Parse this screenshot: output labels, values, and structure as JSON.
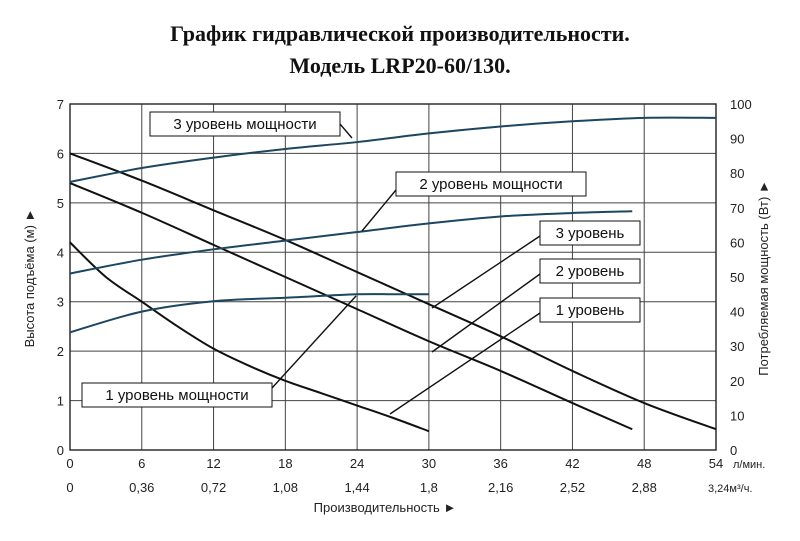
{
  "title_line1": "График гидравлической производительности.",
  "title_line2": "Модель LRP20-60/130.",
  "chart_data": {
    "type": "line",
    "title": "График гидравлической производительности. Модель LRP20-60/130.",
    "xlabel": "Производительность ►",
    "ylabel_left": "Высота подъёма (м) ►",
    "ylabel_right": "Потребляемая мощность (Вт) ►",
    "x_unit_top": "л/мин.",
    "x_unit_bottom": "3,24м³/ч.",
    "xlim": [
      0,
      54
    ],
    "ylim_left": [
      0,
      7
    ],
    "ylim_right": [
      0,
      100
    ],
    "x_ticks_top": [
      "0",
      "6",
      "12",
      "18",
      "24",
      "30",
      "36",
      "42",
      "48",
      "54"
    ],
    "x_ticks_bottom": [
      "0",
      "0,36",
      "0,72",
      "1,08",
      "1,44",
      "1,8",
      "2,16",
      "2,52",
      "2,88",
      "3,24м³/ч."
    ],
    "y_ticks_left": [
      "0",
      "1",
      "2",
      "3",
      "4",
      "5",
      "6",
      "7"
    ],
    "y_ticks_right": [
      "0",
      "10",
      "20",
      "30",
      "40",
      "50",
      "60",
      "70",
      "80",
      "90",
      "100"
    ],
    "grid": true,
    "head_series": [
      {
        "name": "1 уровень",
        "x": [
          0,
          3,
          6,
          9,
          12,
          15,
          18,
          21,
          24,
          27,
          30
        ],
        "y": [
          4.2,
          3.5,
          3.0,
          2.5,
          2.05,
          1.7,
          1.4,
          1.15,
          0.9,
          0.65,
          0.38
        ]
      },
      {
        "name": "2 уровень",
        "x": [
          0,
          6,
          12,
          18,
          24,
          30,
          36,
          42,
          47
        ],
        "y": [
          5.4,
          4.8,
          4.15,
          3.5,
          2.85,
          2.2,
          1.6,
          0.95,
          0.42
        ]
      },
      {
        "name": "3 уровень",
        "x": [
          0,
          6,
          12,
          18,
          24,
          30,
          36,
          42,
          48,
          54
        ],
        "y": [
          6.0,
          5.45,
          4.85,
          4.25,
          3.6,
          2.95,
          2.3,
          1.6,
          0.95,
          0.42
        ]
      }
    ],
    "power_series": [
      {
        "name": "1 уровень мощности",
        "x": [
          0,
          6,
          12,
          18,
          24,
          27,
          30
        ],
        "y": [
          34,
          40,
          43,
          44,
          45,
          45,
          45
        ]
      },
      {
        "name": "2 уровень мощности",
        "x": [
          0,
          6,
          12,
          18,
          24,
          30,
          36,
          42,
          47
        ],
        "y": [
          51,
          55,
          58,
          60.5,
          63,
          65.5,
          67.5,
          68.5,
          69
        ]
      },
      {
        "name": "3 уровень мощности",
        "x": [
          0,
          6,
          12,
          18,
          24,
          30,
          36,
          42,
          48,
          54
        ],
        "y": [
          77.5,
          81.5,
          84.5,
          87,
          89,
          91.5,
          93.5,
          95,
          96,
          96
        ]
      }
    ],
    "callouts": [
      "3 уровень мощности",
      "2 уровень мощности",
      "3 уровень",
      "2 уровень",
      "1 уровень",
      "1 уровень мощности"
    ]
  }
}
